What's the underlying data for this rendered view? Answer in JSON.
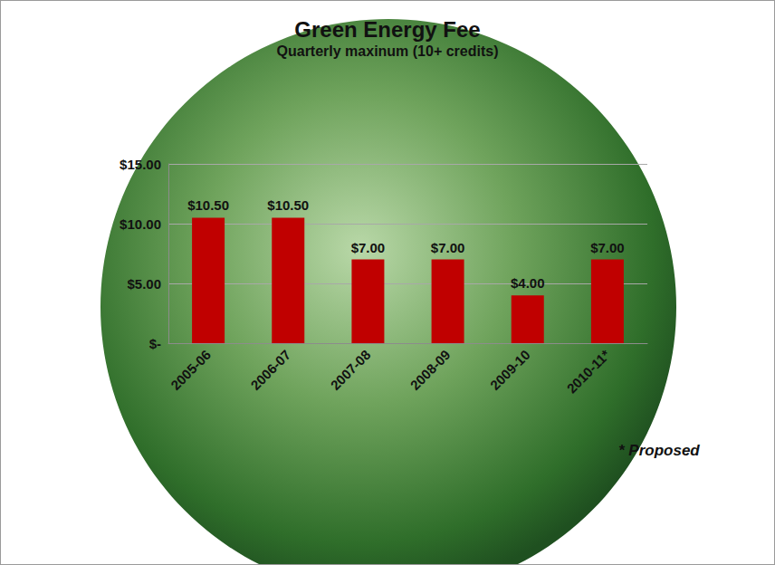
{
  "chart_data": {
    "type": "bar",
    "title": "Green Energy Fee",
    "subtitle": "Quarterly maxinum (10+ credits)",
    "categories": [
      "2005-06",
      "2006-07",
      "2007-08",
      "2008-09",
      "2009-10",
      "2010-11*"
    ],
    "values": [
      10.5,
      10.5,
      7,
      7,
      4,
      7
    ],
    "value_labels": [
      "$10.50",
      "$10.50",
      "$7.00",
      "$7.00",
      "$4.00",
      "$7.00"
    ],
    "color": "#c00000",
    "ylim": [
      0,
      15
    ],
    "yticks": [
      {
        "value": 0,
        "label": "$-"
      },
      {
        "value": 5,
        "label": "$5.00"
      },
      {
        "value": 10,
        "label": "$10.00"
      },
      {
        "value": 15,
        "label": "$15.00"
      }
    ],
    "grid": true,
    "data_labels": true,
    "annotations": [
      "* Proposed"
    ]
  }
}
